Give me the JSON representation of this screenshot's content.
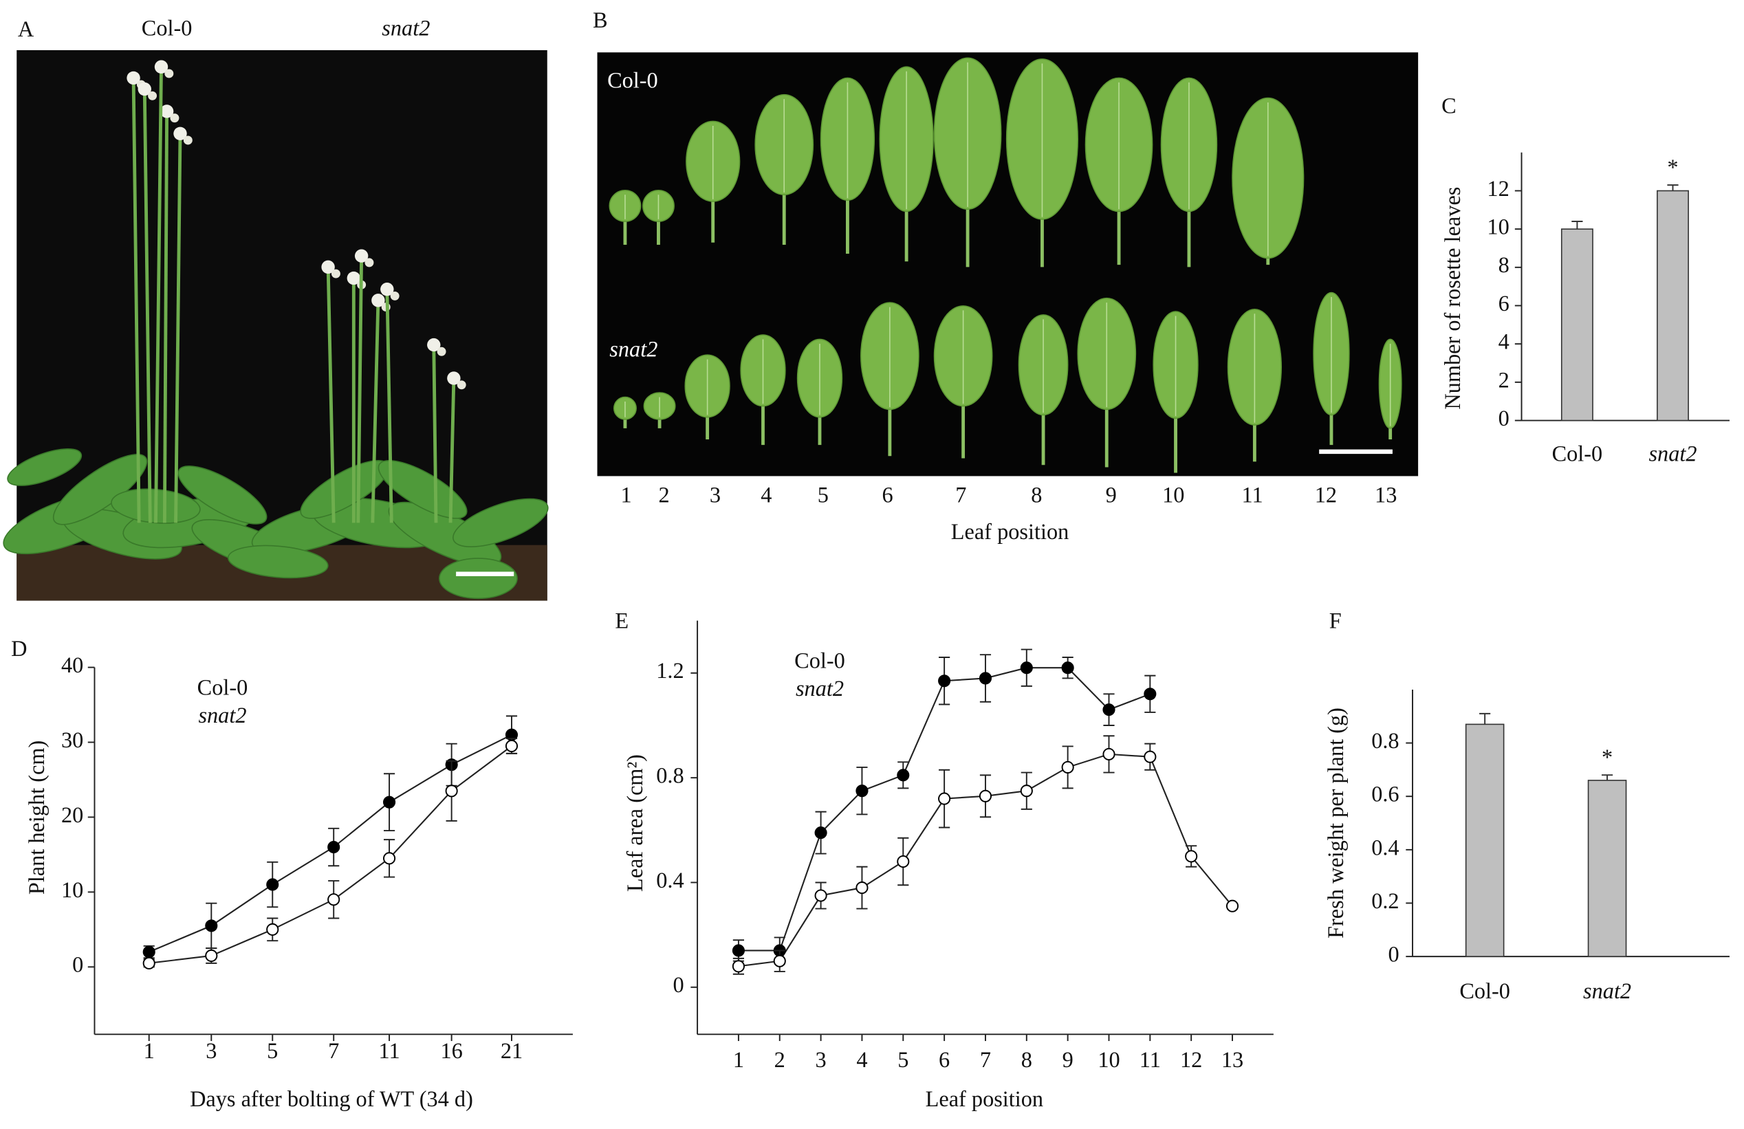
{
  "panels": [
    "A",
    "B",
    "C",
    "D",
    "E",
    "F"
  ],
  "photo_a": {
    "labels": [
      "Col-0",
      "snat2"
    ]
  },
  "photo_b": {
    "row_labels": [
      "Col-0",
      "snat2"
    ],
    "leaf_positions": [
      "1",
      "2",
      "3",
      "4",
      "5",
      "6",
      "7",
      "8",
      "9",
      "10",
      "11",
      "12",
      "13"
    ],
    "xlabel": "Leaf position"
  },
  "chart_data": [
    {
      "type": "bar",
      "ylabel": "Number of rosette leaves",
      "categories": [
        "Col-0",
        "snat2"
      ],
      "values": [
        10,
        12
      ],
      "errors": [
        0.4,
        0.3
      ],
      "annotations": [
        null,
        "*"
      ],
      "color": "#bfbfbf",
      "ylim": [
        0,
        14
      ],
      "yticks": [
        0,
        2,
        4,
        6,
        8,
        10,
        12
      ]
    },
    {
      "type": "line",
      "xlabel": "Days after bolting of WT (34 d)",
      "ylabel": "Plant height (cm)",
      "categories": [
        "1",
        "3",
        "5",
        "7",
        "11",
        "16",
        "21"
      ],
      "series": [
        {
          "name": "Col-0",
          "color": "#000000",
          "values": [
            2,
            5.5,
            11,
            16,
            22,
            27,
            31
          ],
          "errors": [
            0.8,
            3,
            3,
            2.5,
            3.8,
            2.8,
            2.5
          ]
        },
        {
          "name": "snat2",
          "color": "#ffffff",
          "values": [
            0.5,
            1.5,
            5,
            9,
            14.5,
            23.5,
            29.5
          ],
          "errors": [
            0.5,
            1,
            1.5,
            2.5,
            2.5,
            4,
            1
          ]
        }
      ],
      "ylim": [
        -9,
        40
      ],
      "yticks": [
        0,
        10,
        20,
        30,
        40
      ]
    },
    {
      "type": "line",
      "xlabel": "Leaf position",
      "ylabel": "Leaf area (cm²)",
      "x": [
        1,
        2,
        3,
        4,
        5,
        6,
        7,
        8,
        9,
        10,
        11,
        12,
        13
      ],
      "series": [
        {
          "name": "Col-0",
          "color": "#000000",
          "values": [
            0.14,
            0.14,
            0.59,
            0.75,
            0.81,
            1.17,
            1.18,
            1.22,
            1.22,
            1.06,
            1.12,
            null,
            null
          ],
          "errors": [
            0.04,
            0.05,
            0.08,
            0.09,
            0.05,
            0.09,
            0.09,
            0.07,
            0.04,
            0.06,
            0.07,
            null,
            null
          ]
        },
        {
          "name": "snat2",
          "color": "#ffffff",
          "values": [
            0.08,
            0.1,
            0.35,
            0.38,
            0.48,
            0.72,
            0.73,
            0.75,
            0.84,
            0.89,
            0.88,
            0.5,
            0.31
          ],
          "errors": [
            0.03,
            0.04,
            0.05,
            0.08,
            0.09,
            0.11,
            0.08,
            0.07,
            0.08,
            0.07,
            0.05,
            0.04,
            0.01
          ]
        }
      ],
      "xlim": [
        0,
        14
      ],
      "xticks": [
        1,
        2,
        3,
        4,
        5,
        6,
        7,
        8,
        9,
        10,
        11,
        12,
        13
      ],
      "ylim": [
        -0.18,
        1.4
      ],
      "yticks": [
        0,
        0.4,
        0.8,
        1.2
      ]
    },
    {
      "type": "bar",
      "ylabel": "Fresh weight per plant (g)",
      "categories": [
        "Col-0",
        "snat2"
      ],
      "values": [
        0.87,
        0.66
      ],
      "errors": [
        0.04,
        0.02
      ],
      "annotations": [
        null,
        "*"
      ],
      "color": "#bfbfbf",
      "ylim": [
        0,
        1
      ],
      "yticks": [
        0,
        0.2,
        0.4,
        0.6,
        0.8
      ]
    }
  ]
}
